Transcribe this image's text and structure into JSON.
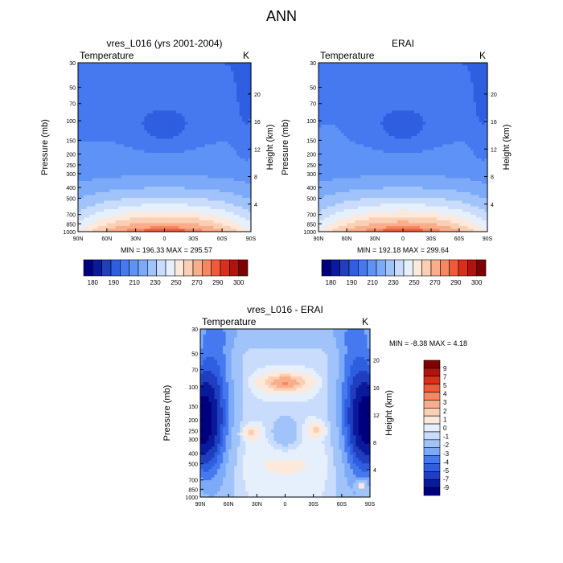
{
  "figure": {
    "title": "ANN"
  },
  "colors": {
    "levels_abs": [
      "#00007f",
      "#0a1a9e",
      "#1f3fbf",
      "#2f5ee0",
      "#4679f0",
      "#5f92f5",
      "#7daaf8",
      "#a0c3fa",
      "#c9dcfb",
      "#e6effc",
      "#fde9dc",
      "#fbcfb3",
      "#f9ae8a",
      "#f68762",
      "#ef5b3a",
      "#d8301c",
      "#b0140c",
      "#7f0000"
    ],
    "levels_diff": [
      "#00007f",
      "#0a1a9e",
      "#1f3fbf",
      "#2f5ee0",
      "#4679f0",
      "#7daaf8",
      "#a0c3fa",
      "#c9dcfb",
      "#e6effc",
      "#fde9dc",
      "#fbcfb3",
      "#f9ae8a",
      "#f68762",
      "#ef5b3a",
      "#d8301c",
      "#b0140c",
      "#7f0000"
    ]
  },
  "chart_data": [
    {
      "type": "heatmap",
      "title": "vres_L016 (yrs 2001-2004)",
      "left_label": "Temperature",
      "right_label": "K",
      "ylabel": "Pressure (mb)",
      "ylabel_right": "Height (km)",
      "x_ticks": [
        "90N",
        "60N",
        "30N",
        "0",
        "30S",
        "60S",
        "90S"
      ],
      "y_ticks": [
        "30",
        "50",
        "70",
        "100",
        "150",
        "200",
        "250",
        "300",
        "400",
        "500",
        "700",
        "850",
        "1000"
      ],
      "y_ticks_right": [
        "20",
        "16",
        "12",
        "8",
        "4"
      ],
      "x_range": [
        90,
        -90
      ],
      "y_range_mb": [
        30,
        1000
      ],
      "stats": "MIN = 196.33   MAX = 295.57",
      "colorbar_labels": [
        "180",
        "190",
        "210",
        "230",
        "250",
        "270",
        "290",
        "300"
      ]
    },
    {
      "type": "heatmap",
      "title": "ERAI",
      "left_label": "Temperature",
      "right_label": "K",
      "ylabel": "Pressure (mb)",
      "ylabel_right": "Height (km)",
      "x_ticks": [
        "90N",
        "60N",
        "30N",
        "0",
        "30S",
        "60S",
        "90S"
      ],
      "y_ticks": [
        "30",
        "50",
        "70",
        "100",
        "150",
        "200",
        "250",
        "300",
        "400",
        "500",
        "700",
        "850",
        "1000"
      ],
      "y_ticks_right": [
        "20",
        "16",
        "12",
        "8",
        "4"
      ],
      "x_range": [
        90,
        -90
      ],
      "y_range_mb": [
        30,
        1000
      ],
      "stats": "MIN = 192.18   MAX = 299.64",
      "colorbar_labels": [
        "180",
        "190",
        "210",
        "230",
        "250",
        "270",
        "290",
        "300"
      ]
    },
    {
      "type": "heatmap",
      "title": "vres_L016 - ERAI",
      "left_label": "Temperature",
      "right_label": "K",
      "ylabel": "Pressure (mb)",
      "ylabel_right": "Height (km)",
      "x_ticks": [
        "90N",
        "60N",
        "30N",
        "0",
        "30S",
        "60S",
        "90S"
      ],
      "y_ticks": [
        "30",
        "50",
        "70",
        "100",
        "150",
        "200",
        "250",
        "300",
        "400",
        "500",
        "700",
        "850",
        "1000"
      ],
      "y_ticks_right": [
        "20",
        "16",
        "12",
        "8",
        "4"
      ],
      "x_range": [
        90,
        -90
      ],
      "y_range_mb": [
        30,
        1000
      ],
      "stats": "MIN =  -8.38  MAX =   4.18",
      "colorbar_labels": [
        "9",
        "7",
        "5",
        "4",
        "3",
        "2",
        "1",
        "0",
        "-1",
        "-2",
        "-3",
        "-4",
        "-5",
        "-7",
        "-9"
      ]
    }
  ]
}
